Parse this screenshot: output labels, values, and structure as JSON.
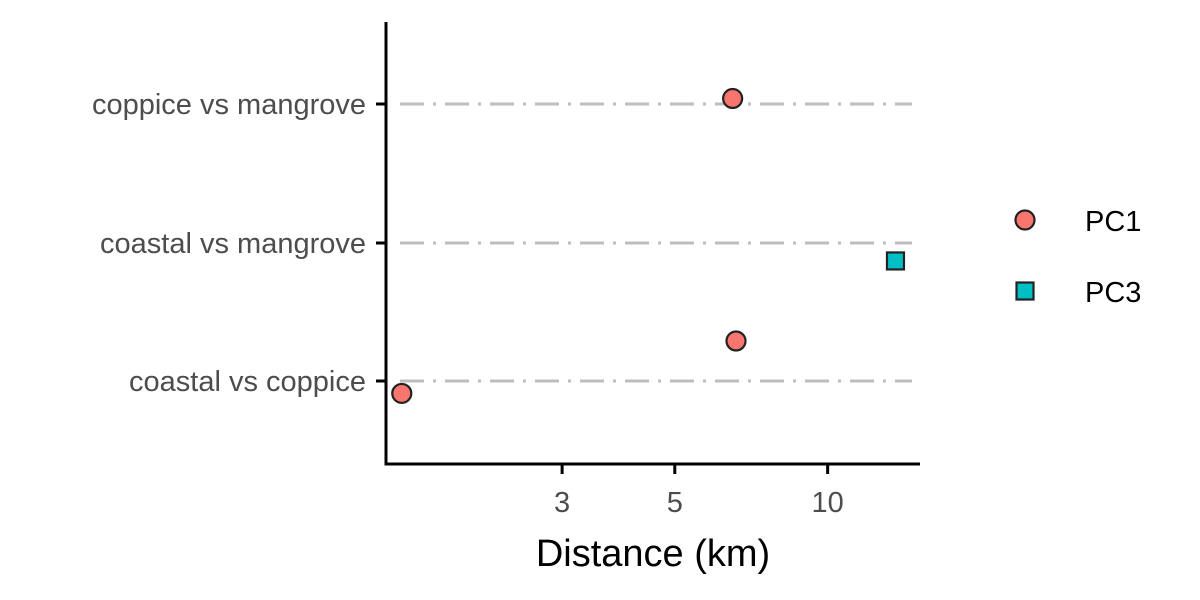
{
  "chart_data": {
    "type": "scatter",
    "xlabel": "Distance (km)",
    "ylabel": "",
    "x_scale": "log",
    "xlim": [
      1.35,
      15.2
    ],
    "x_ticks": [
      3,
      5,
      10
    ],
    "x_tick_labels": [
      "3",
      "5",
      "10"
    ],
    "categories": [
      "coastal vs coppice",
      "coastal vs mangrove",
      "coppice vs mangrove"
    ],
    "grid": "dashed horizontal lines at categories",
    "legend_position": "right",
    "series": [
      {
        "name": "PC1",
        "shape": "circle",
        "color": "#F8766D",
        "points": [
          {
            "category": "coppice vs mangrove",
            "x": 6.5,
            "offset": 0.04
          },
          {
            "category": "coastal vs coppice",
            "x": 6.6,
            "offset": 0.29
          },
          {
            "category": "coastal vs coppice",
            "x": 1.45,
            "offset": -0.09
          }
        ]
      },
      {
        "name": "PC3",
        "shape": "square",
        "color": "#00BFC4",
        "points": [
          {
            "category": "coastal vs mangrove",
            "x": 13.6,
            "offset": -0.13
          }
        ]
      }
    ]
  }
}
